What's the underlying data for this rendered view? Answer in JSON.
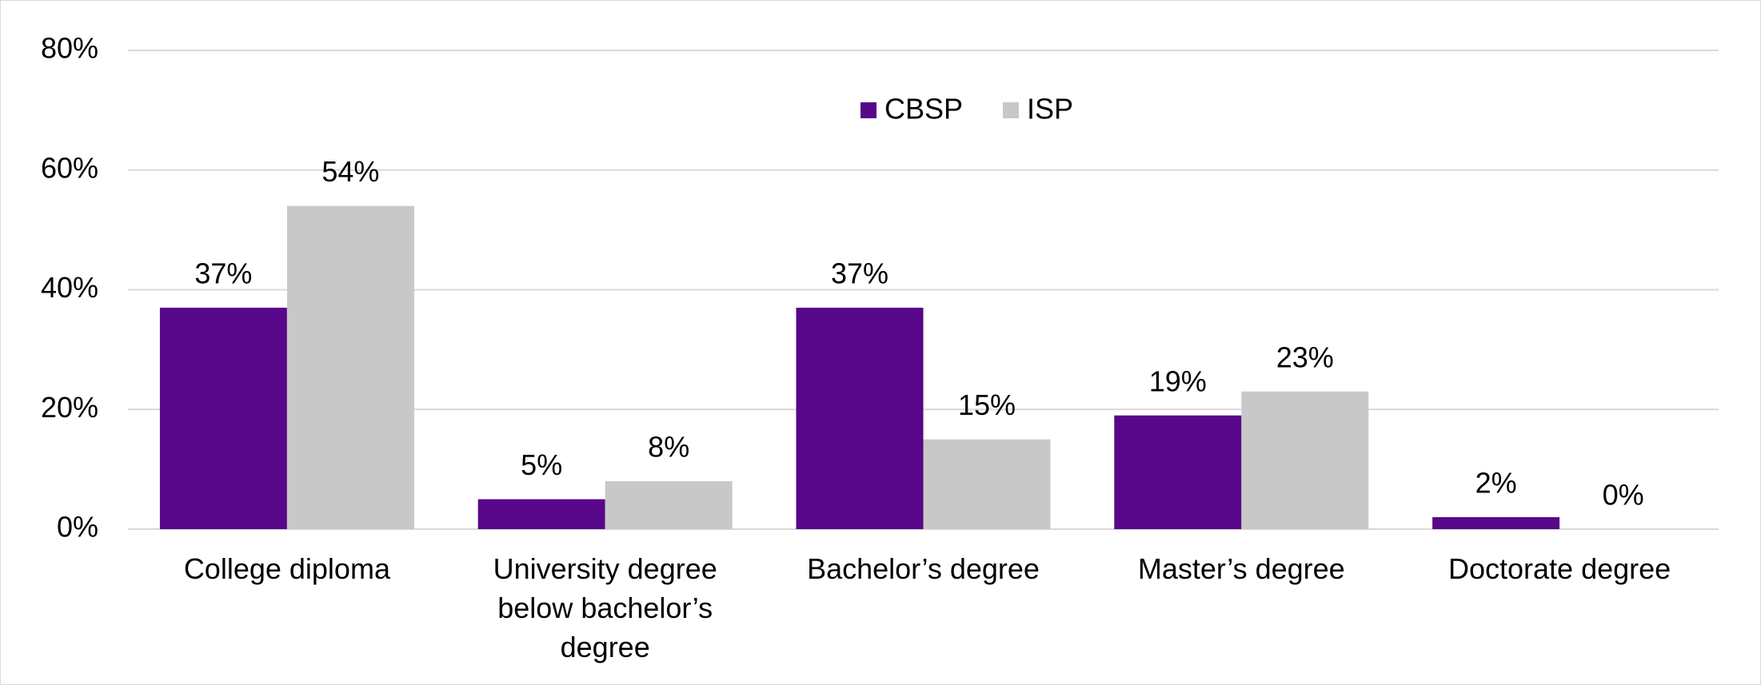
{
  "chart_data": {
    "type": "bar",
    "categories": [
      "College diploma",
      "University degree below bachelor’s degree",
      "Bachelor’s degree",
      "Master’s degree",
      "Doctorate degree"
    ],
    "series": [
      {
        "name": "CBSP",
        "color": "#58068a",
        "values": [
          37,
          5,
          37,
          19,
          2
        ],
        "value_labels": [
          "37%",
          "5%",
          "37%",
          "19%",
          "2%"
        ]
      },
      {
        "name": "ISP",
        "color": "#c8c8c8",
        "values": [
          54,
          8,
          15,
          23,
          0
        ],
        "value_labels": [
          "54%",
          "8%",
          "15%",
          "23%",
          "0%"
        ]
      }
    ],
    "ylim": [
      0,
      80
    ],
    "yticks": [
      {
        "value": 0,
        "label": "0%"
      },
      {
        "value": 20,
        "label": "20%"
      },
      {
        "value": 40,
        "label": "40%"
      },
      {
        "value": 60,
        "label": "60%"
      },
      {
        "value": 80,
        "label": "80%"
      }
    ],
    "grid": true,
    "legend": "top"
  }
}
